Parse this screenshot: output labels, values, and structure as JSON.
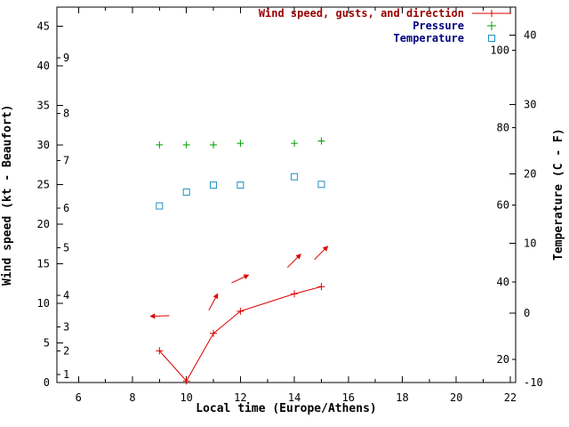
{
  "chart_data": {
    "type": "line",
    "xlabel": "Local time (Europe/Athens)",
    "ylabel_left": "Wind speed (kt - Beaufort)",
    "ylabel_right": "Temperature (C - F)",
    "xlim": [
      5.2,
      22.2
    ],
    "x_major_ticks": [
      6,
      8,
      10,
      12,
      14,
      16,
      18,
      20,
      22
    ],
    "x_minor_ticks": [
      7,
      9,
      11,
      13,
      15,
      17,
      19,
      21
    ],
    "left_axis": {
      "unit": "kt",
      "lim": [
        0,
        47.4
      ],
      "ticks": [
        0,
        5,
        10,
        15,
        20,
        25,
        30,
        35,
        40,
        45
      ]
    },
    "beaufort_scale": {
      "labels": [
        1,
        2,
        3,
        4,
        5,
        6,
        7,
        8,
        9
      ],
      "kt_positions": [
        1,
        4,
        7,
        11,
        17,
        22,
        28,
        34,
        41
      ]
    },
    "right_axis": {
      "unit": "C",
      "lim": [
        -10,
        44
      ],
      "ticks": [
        -10,
        0,
        10,
        20,
        30,
        40
      ]
    },
    "fahrenheit_scale": {
      "ticks": [
        20,
        40,
        60,
        80,
        100
      ]
    },
    "grid": false,
    "axis_color": "#000000",
    "legend": [
      {
        "label": "Wind speed, gusts, and direction",
        "text_color": "#990000",
        "marker": "line-plus",
        "marker_color": "#dd0000"
      },
      {
        "label": "Pressure",
        "text_color": "#000080",
        "marker": "plus",
        "marker_color": "#00a000"
      },
      {
        "label": "Temperature",
        "text_color": "#000080",
        "marker": "open-square",
        "marker_color": "#2090c0"
      }
    ],
    "series": {
      "wind_speed": {
        "name": "Wind speed",
        "color": "#dd0000",
        "hours": [
          9,
          10,
          11,
          12,
          14,
          15
        ],
        "kt": [
          4.0,
          0.2,
          6.2,
          9.0,
          11.2,
          12.1
        ]
      },
      "wind_direction_arrows": {
        "name": "Wind direction",
        "color": "#dd0000",
        "arrows": [
          {
            "hour": 9,
            "kt": 8.4,
            "angle_deg": 182
          },
          {
            "hour": 11,
            "kt": 10.2,
            "angle_deg": 62
          },
          {
            "hour": 12,
            "kt": 13.1,
            "angle_deg": 25
          },
          {
            "hour": 14,
            "kt": 15.4,
            "angle_deg": 45
          },
          {
            "hour": 15,
            "kt": 16.4,
            "angle_deg": 45
          }
        ]
      },
      "pressure": {
        "name": "Pressure",
        "color": "#00a000",
        "hours": [
          9,
          10,
          11,
          12,
          14,
          15
        ],
        "kt_axis_values": [
          30.0,
          30.0,
          30.0,
          30.2,
          30.2,
          30.5
        ]
      },
      "temperature": {
        "name": "Temperature",
        "color": "#2090c0",
        "hours": [
          9,
          10,
          11,
          12,
          14,
          15
        ],
        "celsius": [
          15.4,
          17.4,
          18.4,
          18.4,
          19.6,
          18.5
        ]
      }
    }
  }
}
